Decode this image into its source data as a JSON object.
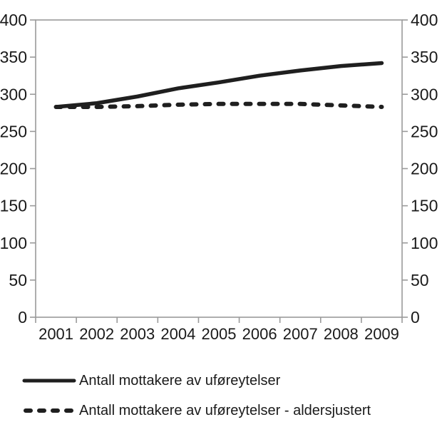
{
  "chart_data": {
    "type": "line",
    "title": "",
    "xlabel": "",
    "ylabel": "",
    "categories": [
      "2001",
      "2002",
      "2003",
      "2004",
      "2005",
      "2006",
      "2007",
      "2008",
      "2009"
    ],
    "series": [
      {
        "name": "Antall mottakere av uføreytelser",
        "style": "solid",
        "values": [
          283,
          288,
          297,
          308,
          316,
          325,
          332,
          338,
          342
        ]
      },
      {
        "name": "Antall mottakere av uføreytelser - aldersjustert",
        "style": "dashed",
        "values": [
          283,
          283,
          284,
          286,
          287,
          287,
          287,
          285,
          283
        ]
      }
    ],
    "ylim": [
      0,
      400
    ],
    "ytick_step": 50,
    "y_axis_left": true,
    "y_axis_right": true,
    "grid": false,
    "legend_position": "bottom-left",
    "line_color": "#1f1f1f",
    "axis_color": "#9a9a9a",
    "text_color": "#1a1a1a"
  }
}
